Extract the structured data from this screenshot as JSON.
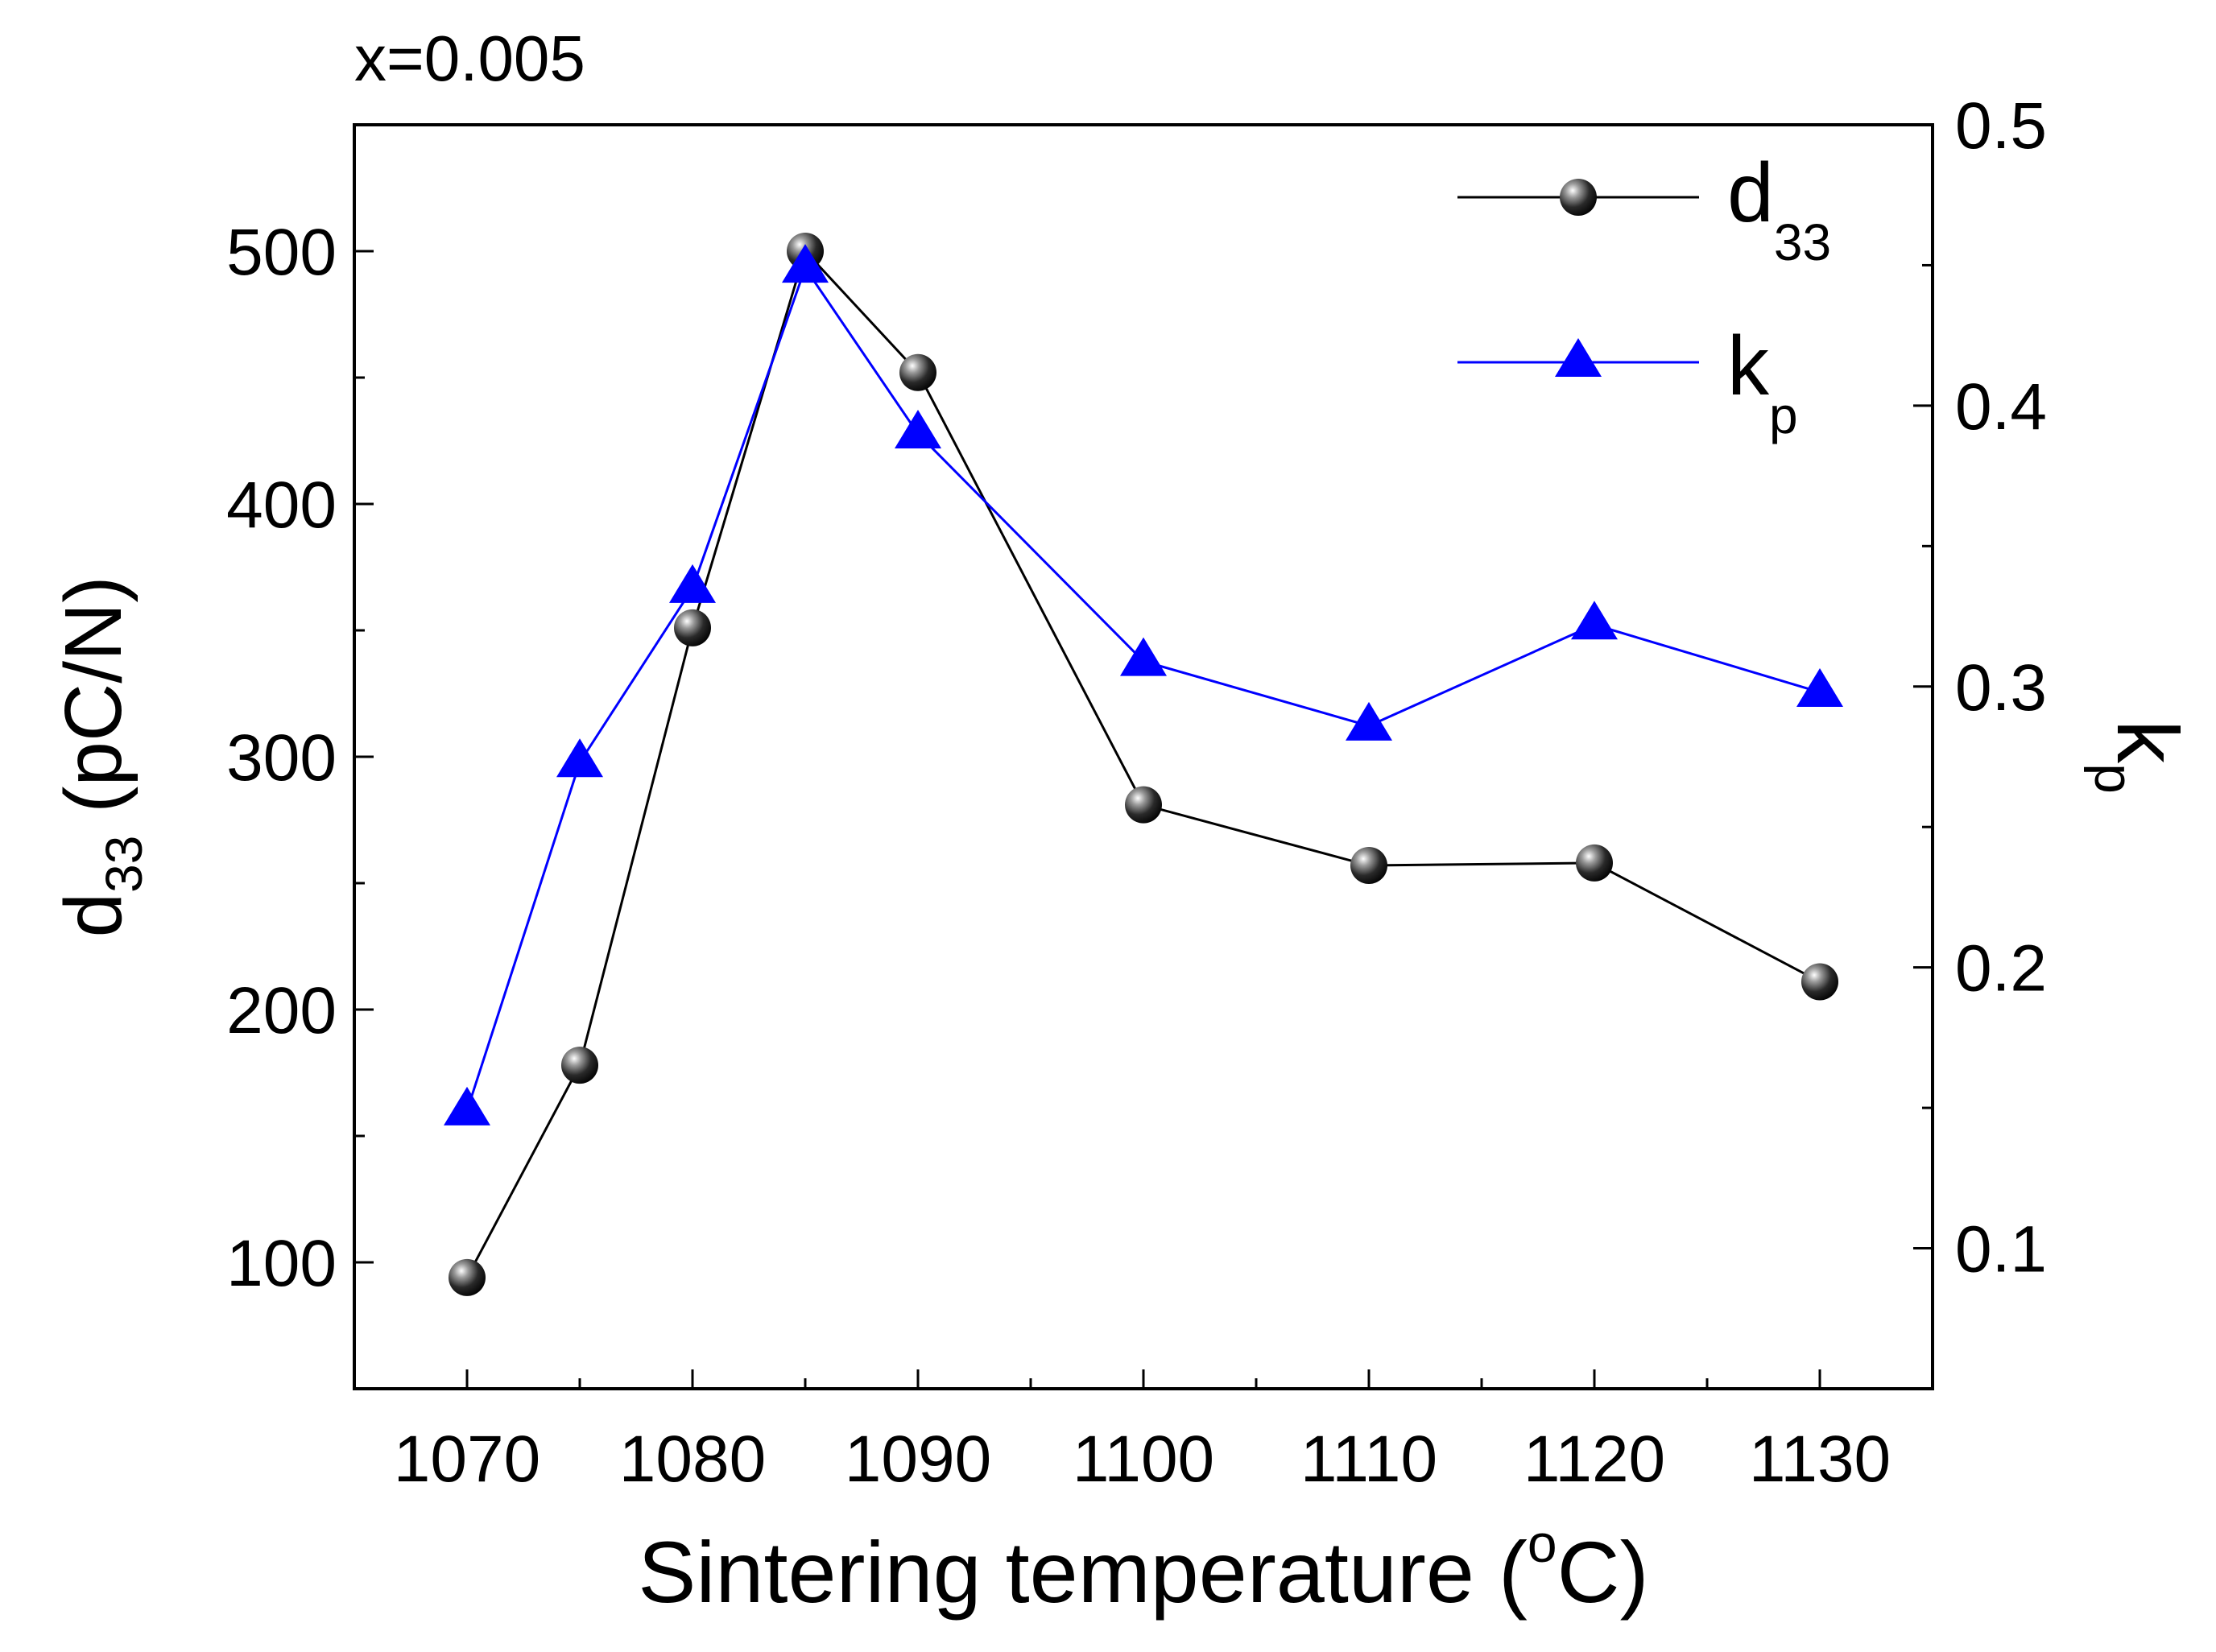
{
  "chart_data": {
    "type": "line",
    "annotation": "x=0.005",
    "xlabel_main": "Sintering temperature (",
    "xlabel_degree": "o",
    "xlabel_end": "C)",
    "ylabel_left_main": "d",
    "ylabel_left_sub": "33",
    "ylabel_left_unit": " (pC/N)",
    "ylabel_right_main": "k",
    "ylabel_right_sub": "p",
    "xlim": [
      1065,
      1135
    ],
    "xticks": [
      1070,
      1080,
      1090,
      1100,
      1110,
      1120,
      1130
    ],
    "xtick_labels": [
      "1070",
      "1080",
      "1090",
      "1100",
      "1110",
      "1120",
      "1130"
    ],
    "ylim_left": [
      50,
      550
    ],
    "yticks_left": [
      100,
      200,
      300,
      400,
      500
    ],
    "ytick_labels_left": [
      "100",
      "200",
      "300",
      "400",
      "500"
    ],
    "ylim_right": [
      0.05,
      0.5
    ],
    "yticks_right": [
      0.1,
      0.2,
      0.3,
      0.4,
      0.5
    ],
    "ytick_labels_right": [
      "0.1",
      "0.2",
      "0.3",
      "0.4",
      "0.5"
    ],
    "x": [
      1070,
      1075,
      1080,
      1085,
      1090,
      1100,
      1110,
      1120,
      1130
    ],
    "series": [
      {
        "name": "d33",
        "legend_main": "d",
        "legend_sub": "33",
        "axis": "left",
        "marker": "sphere",
        "color": "#000000",
        "values": [
          94,
          178,
          351,
          500,
          452,
          281,
          257,
          258,
          211
        ]
      },
      {
        "name": "kp",
        "legend_main": "k",
        "legend_sub": "p",
        "axis": "right",
        "marker": "triangle",
        "color": "#0000ff",
        "values": [
          0.149,
          0.273,
          0.335,
          0.449,
          0.39,
          0.309,
          0.286,
          0.322,
          0.298
        ]
      }
    ],
    "legend_position": "top-right",
    "grid": false
  }
}
